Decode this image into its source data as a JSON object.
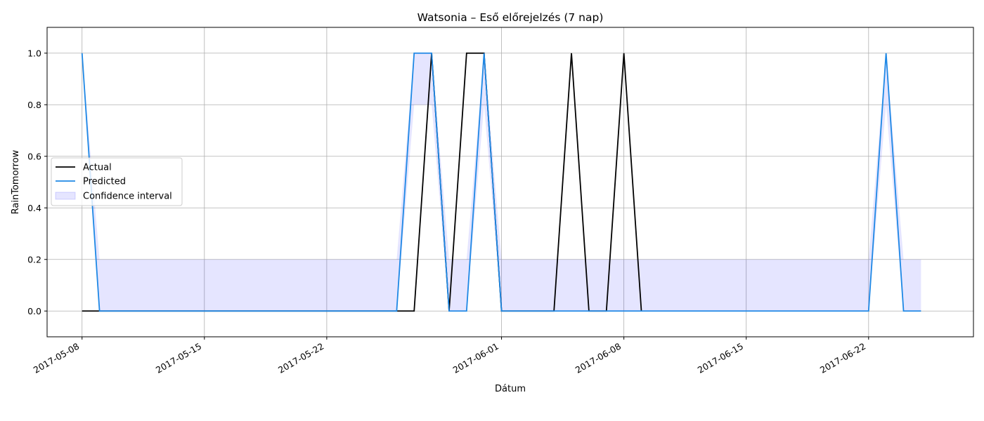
{
  "chart_data": {
    "type": "line",
    "title": "Watsonia – Eső előrejelzés (7 nap)",
    "xlabel": "Dátum",
    "ylabel": "RainTomorrow",
    "ylim": [
      -0.1,
      1.1
    ],
    "xlim": [
      "2017-05-06",
      "2017-06-28"
    ],
    "grid": true,
    "legend_position": "center-left",
    "x_ticks": [
      "2017-05-08",
      "2017-05-15",
      "2017-05-22",
      "2017-06-01",
      "2017-06-08",
      "2017-06-15",
      "2017-06-22"
    ],
    "y_ticks": [
      0.0,
      0.2,
      0.4,
      0.6,
      0.8,
      1.0
    ],
    "y_tick_labels": [
      "0.0",
      "0.2",
      "0.4",
      "0.6",
      "0.8",
      "1.0"
    ],
    "series": [
      {
        "name": "Actual",
        "color": "#000000",
        "x": [
          "2017-05-08",
          "2017-05-09",
          "2017-05-27",
          "2017-05-28",
          "2017-05-29",
          "2017-05-30",
          "2017-05-31",
          "2017-06-01",
          "2017-06-04",
          "2017-06-05",
          "2017-06-06",
          "2017-06-07",
          "2017-06-08",
          "2017-06-09"
        ],
        "y": [
          0,
          0,
          0,
          1,
          0,
          1,
          1,
          0,
          0,
          1,
          0,
          0,
          1,
          0
        ]
      },
      {
        "name": "Predicted",
        "color": "#1e88e5",
        "x": [
          "2017-05-08",
          "2017-05-09",
          "2017-05-26",
          "2017-05-27",
          "2017-05-28",
          "2017-05-29",
          "2017-05-30",
          "2017-05-31",
          "2017-06-01",
          "2017-06-22",
          "2017-06-23",
          "2017-06-24",
          "2017-06-25"
        ],
        "y": [
          1,
          0,
          0,
          1,
          1,
          0,
          0,
          1,
          0,
          0,
          1,
          0,
          0
        ]
      }
    ],
    "confidence_interval": {
      "name": "Confidence interval",
      "color": "#0000ff",
      "opacity": 0.1,
      "x": [
        "2017-05-08",
        "2017-05-09",
        "2017-05-26",
        "2017-05-27",
        "2017-05-28",
        "2017-05-29",
        "2017-05-30",
        "2017-05-31",
        "2017-06-01",
        "2017-06-22",
        "2017-06-23",
        "2017-06-24",
        "2017-06-25"
      ],
      "lower": [
        1,
        0,
        0,
        0.8,
        0.8,
        0,
        0,
        0.8,
        0,
        0,
        0.8,
        0,
        0
      ],
      "upper": [
        1,
        0.2,
        0.2,
        1,
        1,
        0.2,
        0.2,
        1,
        0.2,
        0.2,
        1,
        0.2,
        0.2
      ]
    }
  }
}
